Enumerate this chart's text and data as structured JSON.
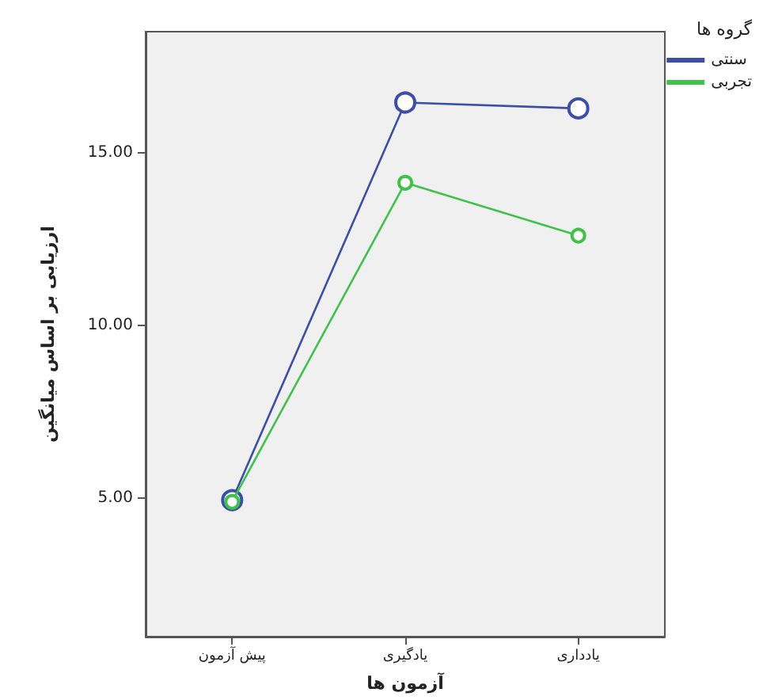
{
  "chart_data": {
    "type": "line",
    "xlabel": "آزمون ها",
    "ylabel": "ارزیابی بر اساس میانگین",
    "legend_title": "گروه ها",
    "categories": [
      "پیش آزمون",
      "یادگیری",
      "یادداری"
    ],
    "series": [
      {
        "name": "سنتی",
        "color": "#3b4fa8",
        "values": [
          4.95,
          16.45,
          16.28
        ]
      },
      {
        "name": "تجربی",
        "color": "#3fc24a",
        "values": [
          4.9,
          14.13,
          12.6
        ]
      }
    ],
    "ylim": [
      1,
      18.5
    ],
    "yticks": [
      {
        "value": 5,
        "label": "5.00"
      },
      {
        "value": 10,
        "label": "10.00"
      },
      {
        "value": 15,
        "label": "15.00"
      }
    ],
    "grid": false,
    "legend": "top right",
    "marker": "circle",
    "line_style": "solid"
  }
}
